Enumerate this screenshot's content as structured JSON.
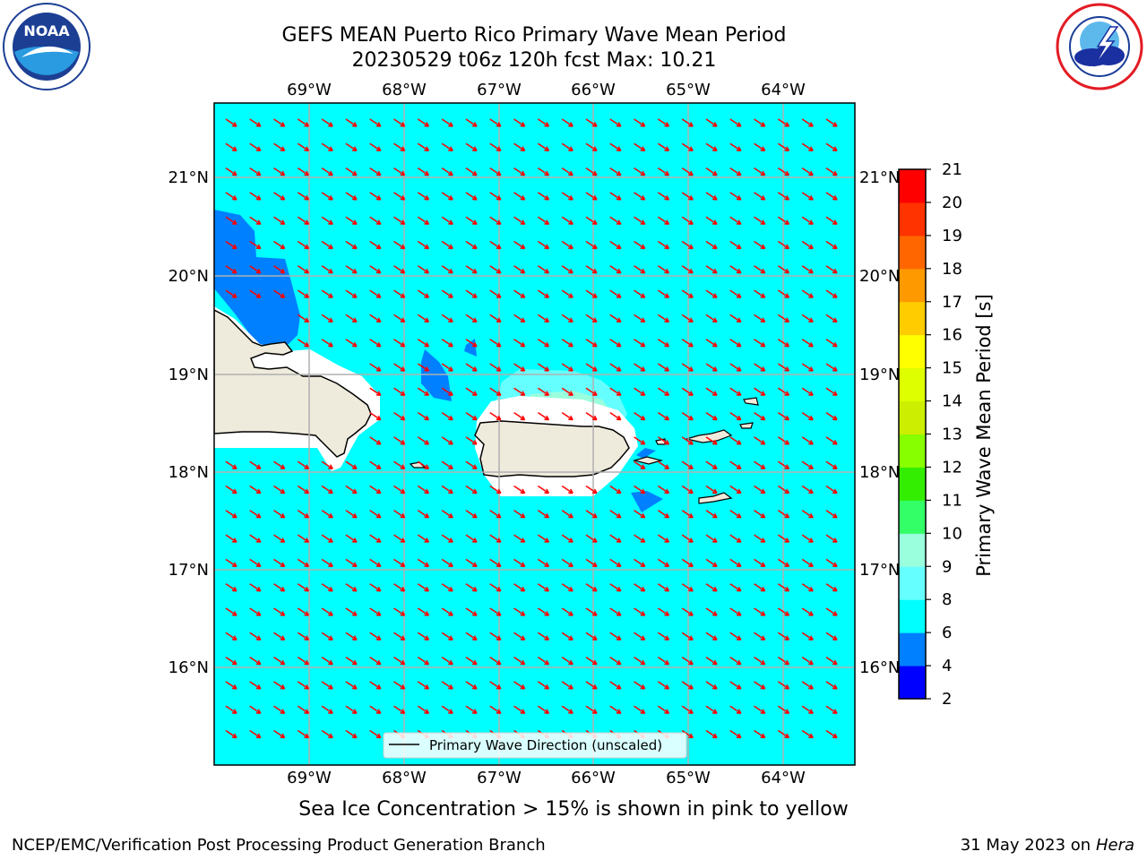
{
  "header": {
    "title_line1": "GEFS MEAN Puerto Rico Primary Wave Mean Period",
    "title_line2": "20230529 t06z 120h fcst   Max: 10.21"
  },
  "logos": {
    "left": {
      "text": "NOAA",
      "ring_text": "NATIONAL OCEANIC AND ATMOSPHERIC ADMINISTRATION · U.S. DEPARTMENT OF COMMERCE"
    },
    "right": {
      "ring_text": "NATIONAL WEATHER SERVICE"
    }
  },
  "map": {
    "lon_labels": [
      "69°W",
      "68°W",
      "67°W",
      "66°W",
      "65°W",
      "64°W"
    ],
    "lat_labels": [
      "21°N",
      "20°N",
      "19°N",
      "18°N",
      "17°N",
      "16°N"
    ],
    "legend_label": "Primary Wave Direction (unscaled)",
    "arrow_color": "#ff0000",
    "ocean_color": "#00ffff",
    "land_color": "#efebdc"
  },
  "colorbar": {
    "label": "Primary Wave Mean Period [s]",
    "ticks": [
      "2",
      "4",
      "6",
      "8",
      "9",
      "10",
      "11",
      "12",
      "13",
      "14",
      "15",
      "16",
      "17",
      "18",
      "19",
      "20",
      "21"
    ],
    "colors": [
      "#0000ff",
      "#0080ff",
      "#00ffff",
      "#66ffff",
      "#99ffdd",
      "#33ff66",
      "#33ee00",
      "#88ff00",
      "#ccee00",
      "#ddff00",
      "#ffff00",
      "#ffcc00",
      "#ff9900",
      "#ff6600",
      "#ff3300",
      "#ff0000"
    ]
  },
  "footer": {
    "subtitle": "Sea Ice Concentration > 15% is shown in pink to yellow",
    "credit": "NCEP/EMC/Verification Post Processing Product Generation Branch",
    "date": "31 May 2023 on",
    "host": "Hera"
  }
}
